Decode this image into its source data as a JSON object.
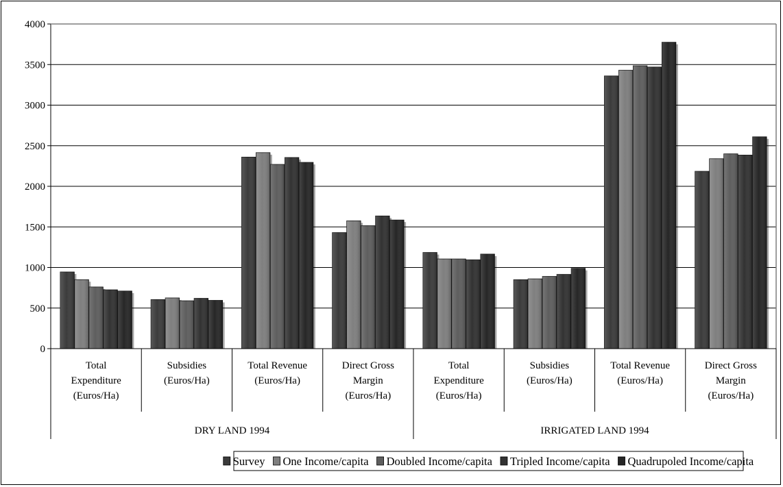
{
  "chart_data": {
    "type": "bar",
    "title": "",
    "xlabel": "",
    "ylabel": "",
    "ylim": [
      0,
      4000
    ],
    "yticks": [
      "0",
      "500",
      "1000",
      "1500",
      "2000",
      "2500",
      "3000",
      "3500",
      "4000"
    ],
    "grid": true,
    "legend_position": "bottom",
    "groups": [
      {
        "label": "DRY LAND 1994",
        "span": [
          0,
          3
        ]
      },
      {
        "label": "IRRIGATED LAND 1994",
        "span": [
          4,
          7
        ]
      }
    ],
    "categories": [
      [
        "Total",
        "Expenditure",
        "(Euros/Ha)"
      ],
      [
        "Subsidies",
        "(Euros/Ha)"
      ],
      [
        "Total Revenue",
        "(Euros/Ha)"
      ],
      [
        "Direct Gross",
        "Margin",
        "(Euros/Ha)"
      ],
      [
        "Total",
        "Expenditure",
        "(Euros/Ha)"
      ],
      [
        "Subsidies",
        "(Euros/Ha)"
      ],
      [
        "Total Revenue",
        "(Euros/Ha)"
      ],
      [
        "Direct Gross",
        "Margin",
        "(Euros/Ha)"
      ]
    ],
    "series": [
      {
        "name": "Survey",
        "color": "#3b3b3b",
        "values": [
          945,
          605,
          2360,
          1430,
          1185,
          850,
          3360,
          2185
        ]
      },
      {
        "name": "One Income/capita",
        "color": "#7f7f7f",
        "values": [
          850,
          625,
          2415,
          1575,
          1105,
          860,
          3430,
          2340
        ]
      },
      {
        "name": "Doubled Income/capita",
        "color": "#5e5e5e",
        "values": [
          760,
          590,
          2270,
          1515,
          1105,
          890,
          3485,
          2400
        ]
      },
      {
        "name": "Tripled Income/capita",
        "color": "#323232",
        "values": [
          725,
          620,
          2355,
          1635,
          1095,
          915,
          3470,
          2385
        ]
      },
      {
        "name": "Quadrupoled Income/capita",
        "color": "#262626",
        "values": [
          710,
          595,
          2295,
          1585,
          1165,
          990,
          3775,
          2610
        ]
      }
    ]
  }
}
